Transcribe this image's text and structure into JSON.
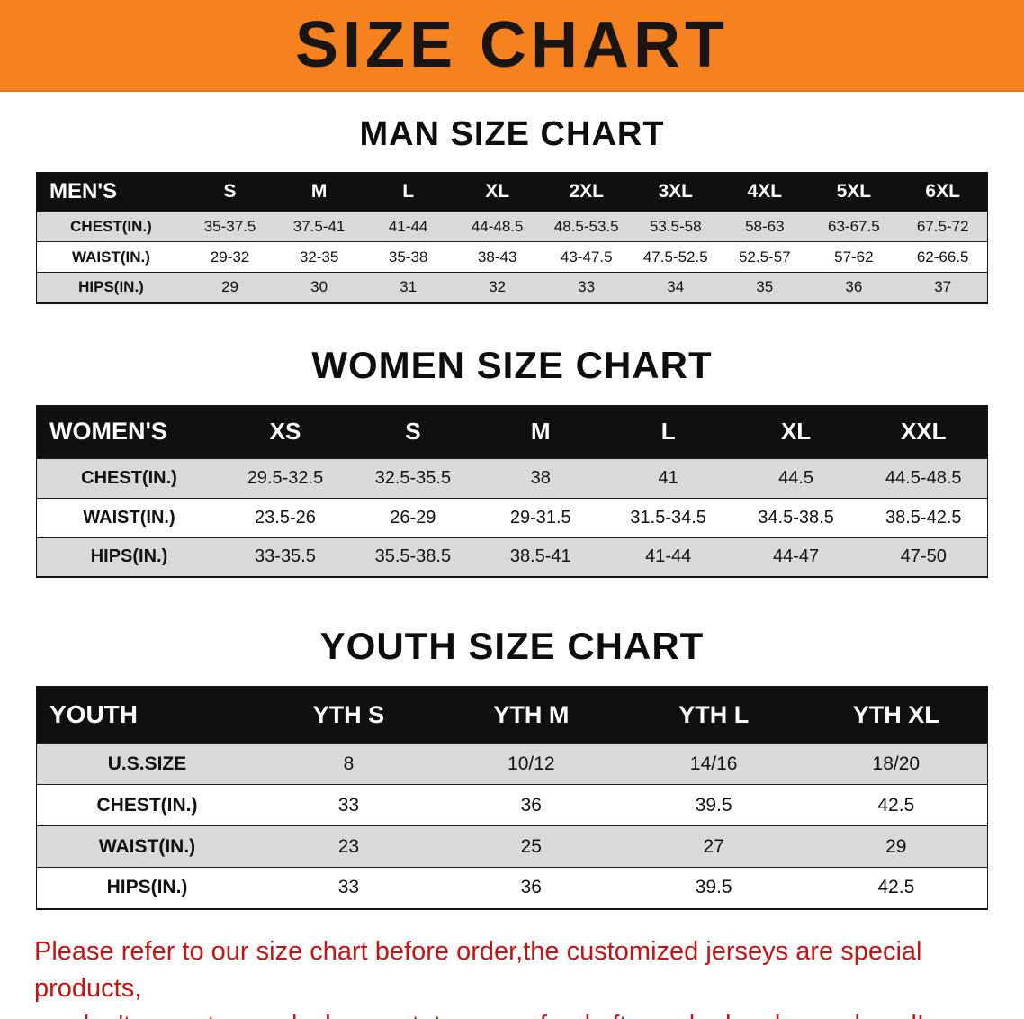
{
  "banner": {
    "title": "SIZE CHART"
  },
  "colors": {
    "banner-orange": "#f5821e",
    "header-black": "#101010",
    "row-gray": "#d9d9d9",
    "note-red": "#c41414"
  },
  "sections": [
    {
      "heading": "MAN SIZE CHART",
      "table": {
        "header": [
          "MEN'S",
          "S",
          "M",
          "L",
          "XL",
          "2XL",
          "3XL",
          "4XL",
          "5XL",
          "6XL"
        ],
        "rows": [
          [
            "CHEST(IN.)",
            "35-37.5",
            "37.5-41",
            "41-44",
            "44-48.5",
            "48.5-53.5",
            "53.5-58",
            "58-63",
            "63-67.5",
            "67.5-72"
          ],
          [
            "WAIST(IN.)",
            "29-32",
            "32-35",
            "35-38",
            "38-43",
            "43-47.5",
            "47.5-52.5",
            "52.5-57",
            "57-62",
            "62-66.5"
          ],
          [
            "HIPS(IN.)",
            "29",
            "30",
            "31",
            "32",
            "33",
            "34",
            "35",
            "36",
            "37"
          ]
        ]
      }
    },
    {
      "heading": "WOMEN SIZE CHART",
      "table": {
        "header": [
          "WOMEN'S",
          "XS",
          "S",
          "M",
          "L",
          "XL",
          "XXL"
        ],
        "rows": [
          [
            "CHEST(IN.)",
            "29.5-32.5",
            "32.5-35.5",
            "38",
            "41",
            "44.5",
            "44.5-48.5"
          ],
          [
            "WAIST(IN.)",
            "23.5-26",
            "26-29",
            "29-31.5",
            "31.5-34.5",
            "34.5-38.5",
            "38.5-42.5"
          ],
          [
            "HIPS(IN.)",
            "33-35.5",
            "35.5-38.5",
            "38.5-41",
            "41-44",
            "44-47",
            "47-50"
          ]
        ]
      }
    },
    {
      "heading": "YOUTH SIZE CHART",
      "table": {
        "header": [
          "YOUTH",
          "YTH S",
          "YTH M",
          "YTH L",
          "YTH XL"
        ],
        "rows": [
          [
            "U.S.SIZE",
            "8",
            "10/12",
            "14/16",
            "18/20"
          ],
          [
            "CHEST(IN.)",
            "33",
            "36",
            "39.5",
            "42.5"
          ],
          [
            "WAIST(IN.)",
            "23",
            "25",
            "27",
            "29"
          ],
          [
            "HIPS(IN.)",
            "33",
            "36",
            "39.5",
            "42.5"
          ]
        ]
      }
    }
  ],
  "footer_note": {
    "line1": "Please refer to our size chart before order,the customized jerseys are special products,",
    "line2": "we don't accept cancel, change, teturn or refund after order has been placed!"
  }
}
